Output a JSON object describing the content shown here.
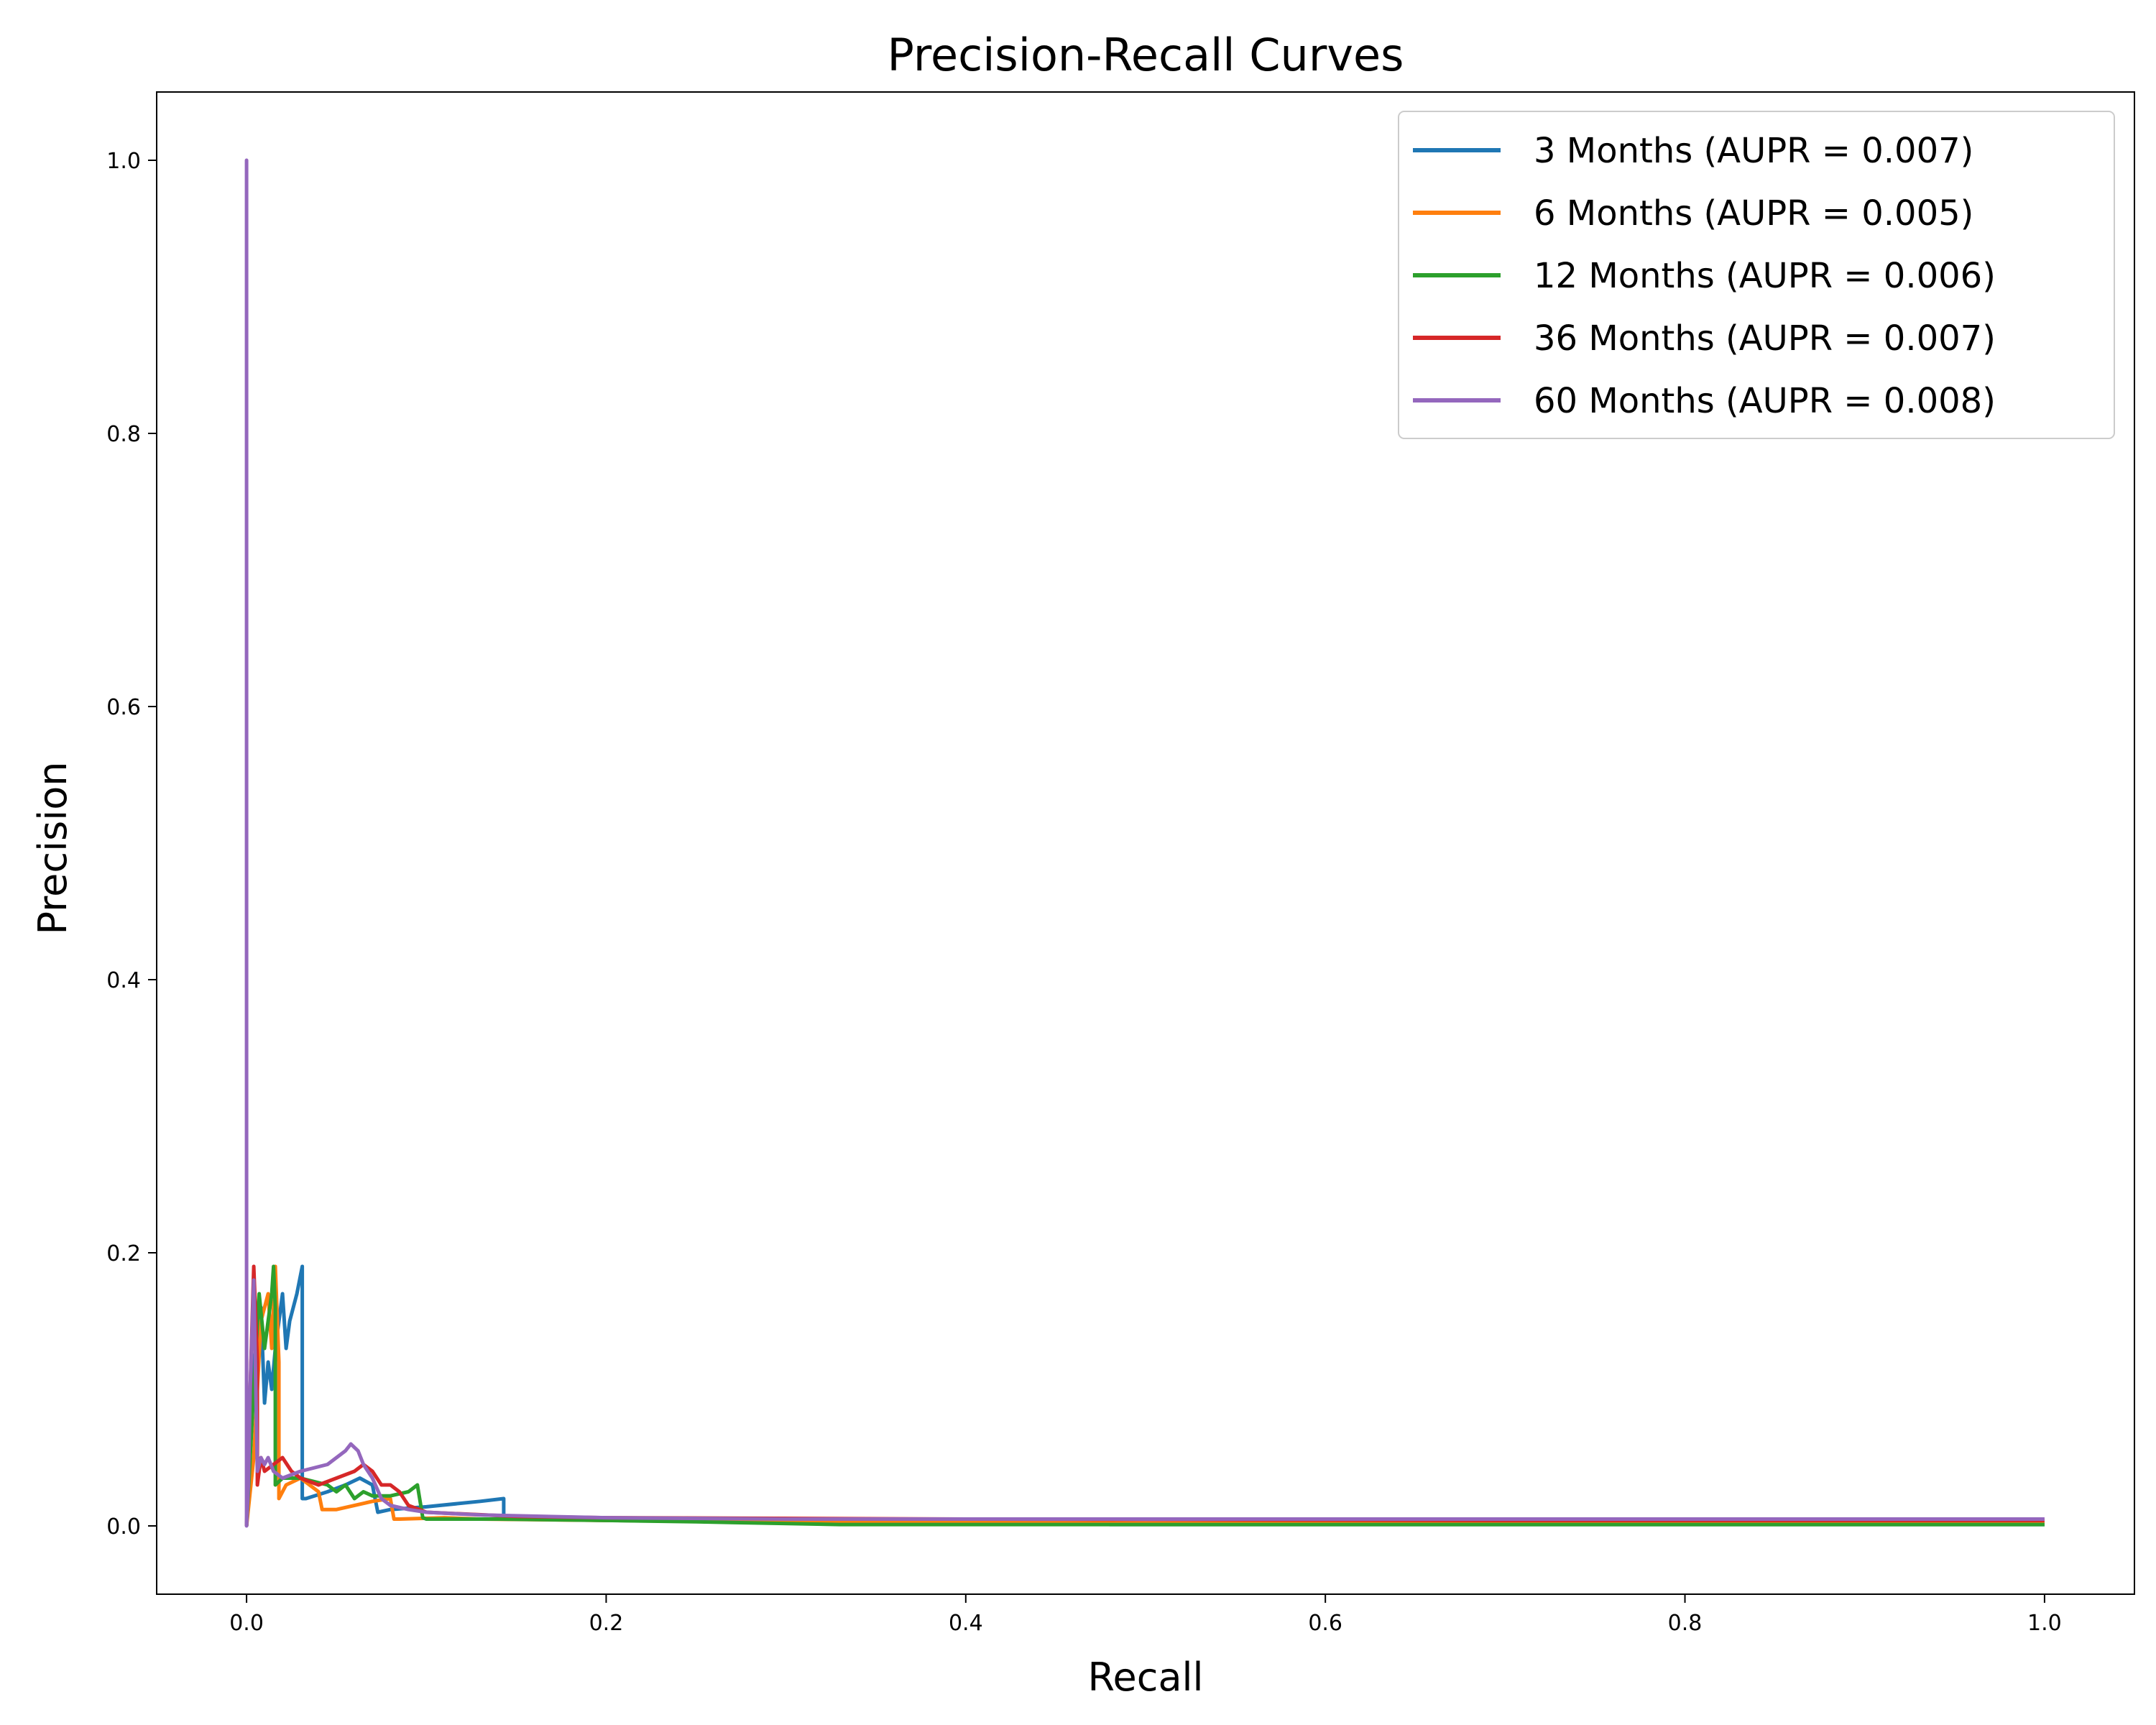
{
  "chart_data": {
    "type": "line",
    "title": "Precision-Recall Curves",
    "xlabel": "Recall",
    "ylabel": "Precision",
    "xlim": [
      -0.05,
      1.05
    ],
    "ylim": [
      -0.05,
      1.05
    ],
    "xticks": [
      0.0,
      0.2,
      0.4,
      0.6,
      0.8,
      1.0
    ],
    "yticks": [
      0.0,
      0.2,
      0.4,
      0.6,
      0.8,
      1.0
    ],
    "xtick_labels": [
      "0.0",
      "0.2",
      "0.4",
      "0.6",
      "0.8",
      "1.0"
    ],
    "ytick_labels": [
      "0.0",
      "0.2",
      "0.4",
      "0.6",
      "0.8",
      "1.0"
    ],
    "grid": false,
    "legend_position": "upper right",
    "series": [
      {
        "name": "3 Months (AUPR = 0.007)",
        "color": "#1f77b4",
        "x": [
          0.0,
          0.002,
          0.004,
          0.008,
          0.01,
          0.012,
          0.014,
          0.016,
          0.018,
          0.02,
          0.022,
          0.024,
          0.026,
          0.028,
          0.031,
          0.031,
          0.033,
          0.045,
          0.055,
          0.063,
          0.07,
          0.073,
          0.08,
          0.1,
          0.13,
          0.143,
          0.143,
          0.16,
          0.2,
          0.3,
          0.48,
          0.48,
          0.7,
          1.0
        ],
        "y": [
          0.0,
          0.08,
          0.12,
          0.16,
          0.09,
          0.12,
          0.1,
          0.13,
          0.15,
          0.17,
          0.13,
          0.15,
          0.16,
          0.17,
          0.19,
          0.02,
          0.02,
          0.025,
          0.03,
          0.035,
          0.03,
          0.01,
          0.012,
          0.014,
          0.018,
          0.02,
          0.006,
          0.005,
          0.004,
          0.003,
          0.002,
          0.001,
          0.001,
          0.001
        ]
      },
      {
        "name": "6 Months (AUPR = 0.005)",
        "color": "#ff7f0e",
        "x": [
          0.0,
          0.004,
          0.008,
          0.012,
          0.014,
          0.016,
          0.018,
          0.018,
          0.022,
          0.03,
          0.035,
          0.04,
          0.042,
          0.05,
          0.07,
          0.08,
          0.082,
          0.085,
          0.11,
          0.13,
          0.2,
          0.3,
          0.5,
          0.7,
          1.0
        ],
        "y": [
          0.0,
          0.05,
          0.15,
          0.17,
          0.13,
          0.19,
          0.12,
          0.02,
          0.03,
          0.035,
          0.03,
          0.025,
          0.012,
          0.012,
          0.018,
          0.02,
          0.005,
          0.005,
          0.006,
          0.005,
          0.004,
          0.003,
          0.002,
          0.002,
          0.002
        ]
      },
      {
        "name": "12 Months (AUPR = 0.006)",
        "color": "#2ca02c",
        "x": [
          0.0,
          0.004,
          0.007,
          0.01,
          0.012,
          0.014,
          0.015,
          0.016,
          0.016,
          0.02,
          0.03,
          0.045,
          0.05,
          0.055,
          0.06,
          0.065,
          0.07,
          0.08,
          0.09,
          0.095,
          0.098,
          0.1,
          0.14,
          0.2,
          0.25,
          0.33,
          0.4,
          0.6,
          0.8,
          1.0
        ],
        "y": [
          0.0,
          0.1,
          0.17,
          0.13,
          0.15,
          0.17,
          0.19,
          0.16,
          0.03,
          0.035,
          0.035,
          0.03,
          0.025,
          0.03,
          0.02,
          0.025,
          0.022,
          0.022,
          0.025,
          0.03,
          0.006,
          0.005,
          0.005,
          0.004,
          0.003,
          0.001,
          0.001,
          0.001,
          0.001,
          0.001
        ]
      },
      {
        "name": "36 Months (AUPR = 0.007)",
        "color": "#d62728",
        "x": [
          0.0,
          0.002,
          0.004,
          0.006,
          0.006,
          0.008,
          0.01,
          0.015,
          0.02,
          0.025,
          0.03,
          0.04,
          0.05,
          0.06,
          0.065,
          0.07,
          0.075,
          0.08,
          0.085,
          0.09,
          0.1,
          0.15,
          0.2,
          0.4,
          0.7,
          1.0
        ],
        "y": [
          0.0,
          0.1,
          0.19,
          0.12,
          0.03,
          0.05,
          0.04,
          0.045,
          0.05,
          0.04,
          0.035,
          0.03,
          0.035,
          0.04,
          0.045,
          0.04,
          0.03,
          0.03,
          0.025,
          0.015,
          0.01,
          0.007,
          0.006,
          0.005,
          0.004,
          0.004
        ]
      },
      {
        "name": "60 Months (AUPR = 0.008)",
        "color": "#9467bd",
        "x": [
          0.0,
          0.0,
          0.0,
          0.001,
          0.002,
          0.004,
          0.006,
          0.008,
          0.01,
          0.012,
          0.015,
          0.02,
          0.03,
          0.045,
          0.05,
          0.055,
          0.058,
          0.062,
          0.065,
          0.07,
          0.075,
          0.08,
          0.09,
          0.1,
          0.13,
          0.2,
          0.3,
          0.5,
          1.0
        ],
        "y": [
          0.0,
          1.0,
          0.0,
          0.03,
          0.1,
          0.18,
          0.04,
          0.05,
          0.045,
          0.05,
          0.04,
          0.035,
          0.04,
          0.045,
          0.05,
          0.055,
          0.06,
          0.055,
          0.045,
          0.035,
          0.02,
          0.015,
          0.012,
          0.01,
          0.008,
          0.006,
          0.005,
          0.005,
          0.005
        ]
      }
    ]
  }
}
